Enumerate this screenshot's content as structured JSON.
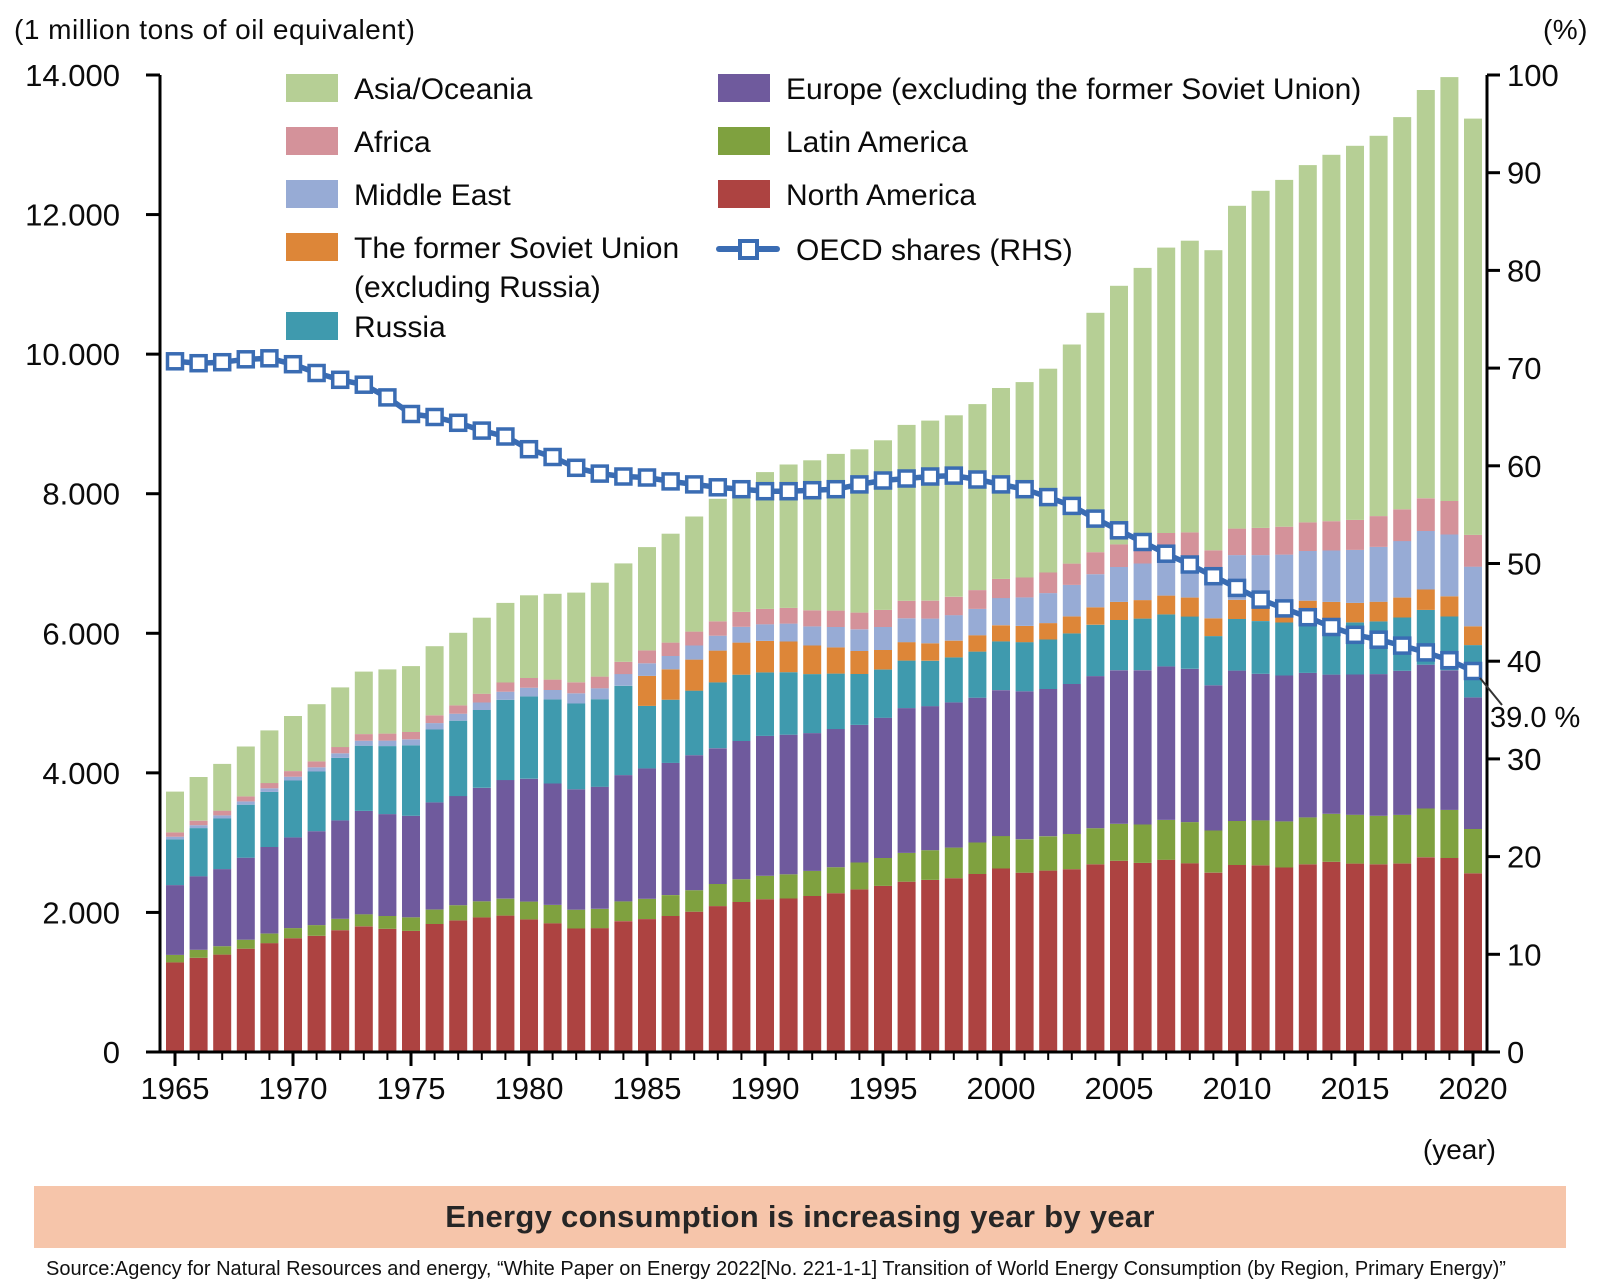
{
  "figure": {
    "left_axis_unit": "(1 million tons of oil equivalent)",
    "right_axis_unit": "(%)",
    "x_axis_unit": "(year)",
    "banner_title": "Energy consumption is increasing year by year",
    "source": "Source:Agency for Natural Resources and energy, “White Paper on Energy 2022[No. 221-1-1] Transition of World Energy Consumption (by Region, Primary Energy)”"
  },
  "colors": {
    "asia_oceania": "#b6cf95",
    "africa": "#d4929a",
    "middle_east": "#97abd5",
    "fsu_ex_russia": "#dd8638",
    "russia": "#3f9aae",
    "europe": "#6f5a9d",
    "latin_america": "#7fa13f",
    "north_america": "#ad4341",
    "oecd_line": "#3a6cb3",
    "banner": "#f6c5aa",
    "axis": "#000000"
  },
  "legend": {
    "column1": [
      {
        "id": "asia_oceania",
        "label": "Asia/Oceania"
      },
      {
        "id": "africa",
        "label": "Africa"
      },
      {
        "id": "middle_east",
        "label": "Middle East"
      },
      {
        "id": "fsu_ex_russia",
        "label": "The former Soviet Union",
        "label_line2": "(excluding Russia)"
      },
      {
        "id": "russia",
        "label": "Russia"
      }
    ],
    "column2": [
      {
        "id": "europe",
        "label": "Europe (excluding the former Soviet Union)"
      },
      {
        "id": "latin_america",
        "label": "Latin America"
      },
      {
        "id": "north_america",
        "label": "North America"
      },
      {
        "id": "oecd",
        "label": "OECD shares (RHS)"
      }
    ]
  },
  "chart_data": {
    "type": "stacked-bar-with-line",
    "title": "Transition of World Energy Consumption (by Region, Primary Energy)",
    "unit": "million tons of oil equivalent",
    "years": [
      1965,
      1966,
      1967,
      1968,
      1969,
      1970,
      1971,
      1972,
      1973,
      1974,
      1975,
      1976,
      1977,
      1978,
      1979,
      1980,
      1981,
      1982,
      1983,
      1984,
      1985,
      1986,
      1987,
      1988,
      1989,
      1990,
      1991,
      1992,
      1993,
      1994,
      1995,
      1996,
      1997,
      1998,
      1999,
      2000,
      2001,
      2002,
      2003,
      2004,
      2005,
      2006,
      2007,
      2008,
      2009,
      2010,
      2011,
      2012,
      2013,
      2014,
      2015,
      2016,
      2017,
      2018,
      2019,
      2020
    ],
    "x_tick_label_years": [
      1965,
      1970,
      1975,
      1980,
      1985,
      1990,
      1995,
      2000,
      2005,
      2010,
      2015,
      2020
    ],
    "left_axis": {
      "label": "(1 million tons of oil equivalent)",
      "min": 0,
      "max": 14000,
      "ticks": [
        {
          "value": 0,
          "label": "0"
        },
        {
          "value": 2000,
          "label": "2.000"
        },
        {
          "value": 4000,
          "label": "4.000"
        },
        {
          "value": 6000,
          "label": "6.000"
        },
        {
          "value": 8000,
          "label": "8.000"
        },
        {
          "value": 10000,
          "label": "10.000"
        },
        {
          "value": 12000,
          "label": "12.000"
        },
        {
          "value": 14000,
          "label": "14.000"
        }
      ]
    },
    "right_axis": {
      "label": "(%)",
      "min": 0,
      "max": 100,
      "ticks": [
        0,
        10,
        20,
        30,
        40,
        50,
        60,
        70,
        80,
        90,
        100
      ]
    },
    "series": [
      {
        "id": "north_america",
        "label": "North America",
        "color": "#ad4341",
        "values": [
          1285,
          1350,
          1395,
          1480,
          1560,
          1630,
          1665,
          1745,
          1800,
          1765,
          1735,
          1835,
          1885,
          1930,
          1955,
          1900,
          1845,
          1770,
          1775,
          1875,
          1905,
          1950,
          2010,
          2090,
          2150,
          2190,
          2200,
          2235,
          2275,
          2330,
          2380,
          2440,
          2465,
          2490,
          2550,
          2630,
          2570,
          2600,
          2620,
          2690,
          2740,
          2710,
          2755,
          2705,
          2570,
          2680,
          2675,
          2645,
          2690,
          2725,
          2700,
          2690,
          2700,
          2790,
          2780,
          2560
        ]
      },
      {
        "id": "latin_america",
        "label": "Latin America",
        "color": "#7fa13f",
        "values": [
          107,
          114,
          121,
          129,
          137,
          145,
          154,
          164,
          174,
          184,
          195,
          206,
          218,
          230,
          242,
          255,
          262,
          269,
          276,
          283,
          290,
          299,
          308,
          317,
          326,
          335,
          347,
          360,
          373,
          386,
          400,
          413,
          426,
          439,
          452,
          465,
          478,
          491,
          504,
          517,
          530,
          550,
          570,
          590,
          605,
          630,
          645,
          660,
          672,
          688,
          700,
          695,
          697,
          700,
          690,
          635
        ]
      },
      {
        "id": "europe",
        "label": "Europe (excluding the former Soviet Union)",
        "color": "#6f5a9d",
        "values": [
          1000,
          1055,
          1105,
          1175,
          1240,
          1300,
          1345,
          1410,
          1480,
          1460,
          1455,
          1535,
          1565,
          1625,
          1700,
          1760,
          1740,
          1725,
          1750,
          1810,
          1870,
          1895,
          1935,
          1945,
          1980,
          2005,
          2000,
          1975,
          1980,
          1970,
          2010,
          2075,
          2065,
          2080,
          2075,
          2090,
          2120,
          2110,
          2150,
          2180,
          2200,
          2210,
          2200,
          2195,
          2080,
          2155,
          2100,
          2090,
          2070,
          1995,
          2010,
          2030,
          2065,
          2060,
          2000,
          1885
        ]
      },
      {
        "id": "russia",
        "label": "Russia",
        "color": "#3f9aae",
        "values": [
          655,
          690,
          725,
          760,
          790,
          815,
          855,
          895,
          935,
          975,
          1010,
          1045,
          1080,
          1115,
          1150,
          1180,
          1205,
          1230,
          1255,
          1280,
          895,
          905,
          925,
          945,
          950,
          910,
          895,
          845,
          795,
          730,
          690,
          680,
          650,
          645,
          660,
          700,
          705,
          710,
          725,
          735,
          720,
          740,
          745,
          750,
          705,
          740,
          755,
          760,
          755,
          760,
          745,
          755,
          765,
          785,
          770,
          750
        ]
      },
      {
        "id": "fsu_ex_russia",
        "label": "The former Soviet Union (excluding Russia)",
        "color": "#dd8638",
        "values": [
          0,
          0,
          0,
          0,
          0,
          0,
          0,
          0,
          0,
          0,
          0,
          0,
          0,
          0,
          0,
          0,
          0,
          0,
          0,
          0,
          430,
          435,
          445,
          455,
          460,
          450,
          440,
          410,
          375,
          330,
          280,
          265,
          250,
          240,
          235,
          230,
          232,
          235,
          242,
          250,
          260,
          265,
          270,
          272,
          255,
          275,
          280,
          282,
          280,
          282,
          280,
          282,
          285,
          292,
          290,
          270
        ]
      },
      {
        "id": "middle_east",
        "label": "Middle East",
        "color": "#97abd5",
        "values": [
          38,
          41,
          44,
          47,
          51,
          55,
          60,
          66,
          72,
          78,
          85,
          92,
          100,
          108,
          116,
          125,
          135,
          146,
          157,
          168,
          180,
          191,
          202,
          214,
          227,
          240,
          257,
          274,
          292,
          310,
          330,
          342,
          354,
          366,
          378,
          390,
          410,
          430,
          452,
          475,
          500,
          525,
          550,
          575,
          605,
          640,
          665,
          690,
          712,
          736,
          760,
          785,
          810,
          840,
          885,
          855
        ]
      },
      {
        "id": "africa",
        "label": "Africa",
        "color": "#d4929a",
        "values": [
          62,
          65,
          69,
          72,
          76,
          80,
          85,
          90,
          95,
          100,
          105,
          112,
          119,
          126,
          133,
          140,
          149,
          158,
          167,
          176,
          185,
          192,
          199,
          206,
          213,
          220,
          225,
          230,
          235,
          240,
          245,
          251,
          257,
          263,
          269,
          275,
          285,
          295,
          305,
          315,
          325,
          336,
          347,
          358,
          369,
          380,
          390,
          400,
          410,
          420,
          430,
          442,
          455,
          468,
          480,
          455
        ]
      },
      {
        "id": "asia_oceania",
        "label": "Asia/Oceania",
        "color": "#b6cf95",
        "values": [
          585,
          625,
          670,
          715,
          755,
          790,
          820,
          855,
          895,
          920,
          945,
          990,
          1040,
          1090,
          1140,
          1185,
          1230,
          1285,
          1345,
          1410,
          1480,
          1560,
          1650,
          1755,
          1860,
          1960,
          2055,
          2150,
          2245,
          2340,
          2430,
          2520,
          2580,
          2600,
          2665,
          2735,
          2800,
          2920,
          3140,
          3430,
          3705,
          3900,
          4090,
          4180,
          4300,
          4625,
          4830,
          4970,
          5120,
          5250,
          5360,
          5450,
          5620,
          5850,
          6075,
          5965
        ]
      }
    ],
    "line_series": {
      "id": "oecd",
      "label": "OECD shares (RHS)",
      "axis": "right",
      "color": "#3a6cb3",
      "marker": "square",
      "values": [
        70.7,
        70.5,
        70.6,
        70.9,
        71.0,
        70.4,
        69.5,
        68.8,
        68.3,
        67.0,
        65.3,
        65.0,
        64.4,
        63.6,
        63.0,
        61.7,
        60.9,
        59.8,
        59.2,
        58.9,
        58.8,
        58.4,
        58.1,
        57.8,
        57.6,
        57.4,
        57.4,
        57.5,
        57.6,
        58.1,
        58.5,
        58.7,
        58.9,
        59.0,
        58.6,
        58.1,
        57.6,
        56.8,
        55.9,
        54.6,
        53.4,
        52.2,
        51.0,
        49.9,
        48.7,
        47.5,
        46.3,
        45.4,
        44.5,
        43.5,
        42.7,
        42.2,
        41.6,
        40.9,
        40.1,
        39.0
      ]
    },
    "annotation": {
      "text": "39.0 %"
    },
    "legend_position": "top",
    "grid": false
  }
}
